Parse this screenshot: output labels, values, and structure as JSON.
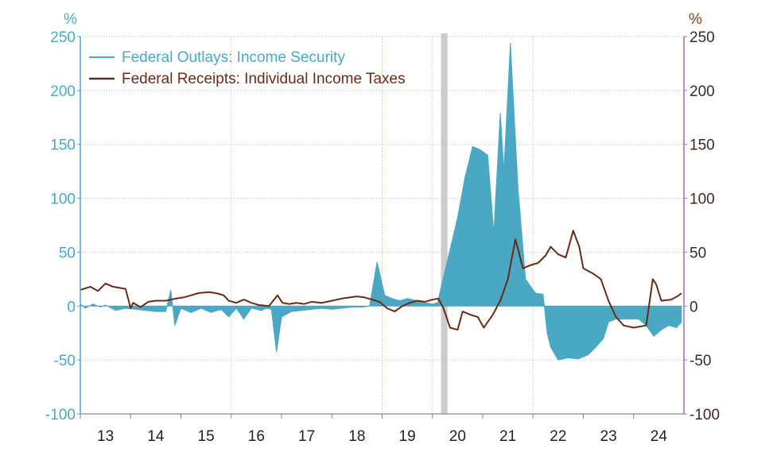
{
  "chart_data": {
    "type": "area",
    "title": "",
    "xlabel": "",
    "ylabel_left": "%",
    "ylabel_right": "%",
    "ylim": [
      -100,
      250
    ],
    "yticks": [
      250,
      200,
      150,
      100,
      50,
      0,
      -50,
      -100
    ],
    "ytick_labels": [
      "250",
      "200",
      "150",
      "100",
      "50",
      "0",
      "-50",
      "-100"
    ],
    "xlim": [
      2012.5,
      2024.5
    ],
    "x_tick_labels": [
      {
        "label": "13",
        "x": 2013.0
      },
      {
        "label": "14",
        "x": 2014.0
      },
      {
        "label": "15",
        "x": 2015.0
      },
      {
        "label": "16",
        "x": 2016.0
      },
      {
        "label": "17",
        "x": 2017.0
      },
      {
        "label": "18",
        "x": 2018.0
      },
      {
        "label": "19",
        "x": 2019.0
      },
      {
        "label": "20",
        "x": 2020.0
      },
      {
        "label": "21",
        "x": 2021.0
      },
      {
        "label": "22",
        "x": 2022.0
      },
      {
        "label": "23",
        "x": 2023.0
      },
      {
        "label": "24",
        "x": 2024.0
      }
    ],
    "vertical_gridlines_x": [
      2015.5,
      2018.5,
      2019.5,
      2021.5
    ],
    "shaded_period": {
      "start": 2019.67,
      "end": 2019.8
    },
    "legend_position": "top-left",
    "colors": {
      "series0": "#4aa8c4",
      "series1": "#6b2a12",
      "left_axis": "#4aa8c4",
      "right_axis": "#9b6db5",
      "grid_h": "#bfbfbf",
      "grid_v": "#e3b27a",
      "shade": "#cccccc"
    },
    "series": [
      {
        "name": "Federal Outlays: Income Security",
        "style": "area",
        "axis": "left",
        "points": [
          [
            2012.5,
            2
          ],
          [
            2012.6,
            -2
          ],
          [
            2012.75,
            2
          ],
          [
            2012.9,
            -1
          ],
          [
            2013.0,
            1
          ],
          [
            2013.2,
            -4
          ],
          [
            2013.4,
            -2
          ],
          [
            2013.6,
            -3
          ],
          [
            2013.8,
            -4
          ],
          [
            2014.0,
            -5
          ],
          [
            2014.2,
            -5
          ],
          [
            2014.3,
            15
          ],
          [
            2014.38,
            -18
          ],
          [
            2014.5,
            -2
          ],
          [
            2014.7,
            -6
          ],
          [
            2014.9,
            -2
          ],
          [
            2015.1,
            -6
          ],
          [
            2015.3,
            -3
          ],
          [
            2015.45,
            -10
          ],
          [
            2015.6,
            -2
          ],
          [
            2015.75,
            -12
          ],
          [
            2015.9,
            -2
          ],
          [
            2016.1,
            -4
          ],
          [
            2016.2,
            -2
          ],
          [
            2016.3,
            -3
          ],
          [
            2016.4,
            -43
          ],
          [
            2016.5,
            -10
          ],
          [
            2016.7,
            -5
          ],
          [
            2016.9,
            -4
          ],
          [
            2017.1,
            -3
          ],
          [
            2017.3,
            -2
          ],
          [
            2017.5,
            -3
          ],
          [
            2017.7,
            -2
          ],
          [
            2017.9,
            -1
          ],
          [
            2018.1,
            -1
          ],
          [
            2018.25,
            0
          ],
          [
            2018.4,
            41
          ],
          [
            2018.55,
            10
          ],
          [
            2018.7,
            7
          ],
          [
            2018.85,
            5
          ],
          [
            2019.0,
            7
          ],
          [
            2019.2,
            5
          ],
          [
            2019.35,
            3
          ],
          [
            2019.5,
            2
          ],
          [
            2019.6,
            3
          ],
          [
            2020.0,
            82
          ],
          [
            2020.15,
            120
          ],
          [
            2020.3,
            148
          ],
          [
            2020.45,
            145
          ],
          [
            2020.6,
            140
          ],
          [
            2020.72,
            68
          ],
          [
            2020.85,
            179
          ],
          [
            2020.92,
            125
          ],
          [
            2021.05,
            244
          ],
          [
            2021.2,
            110
          ],
          [
            2021.35,
            25
          ],
          [
            2021.55,
            12
          ],
          [
            2021.7,
            11
          ],
          [
            2021.78,
            -25
          ],
          [
            2021.85,
            -38
          ],
          [
            2022.0,
            -50
          ],
          [
            2022.2,
            -48
          ],
          [
            2022.4,
            -49
          ],
          [
            2022.6,
            -45
          ],
          [
            2022.75,
            -38
          ],
          [
            2022.9,
            -30
          ],
          [
            2023.0,
            -15
          ],
          [
            2023.15,
            -12
          ],
          [
            2023.4,
            -12
          ],
          [
            2023.6,
            -12
          ],
          [
            2023.75,
            -18
          ],
          [
            2023.9,
            -28
          ],
          [
            2024.05,
            -22
          ],
          [
            2024.2,
            -18
          ],
          [
            2024.35,
            -20
          ],
          [
            2024.45,
            -15
          ]
        ]
      },
      {
        "name": "Federal Receipts: Individual Income Taxes",
        "style": "line",
        "axis": "left",
        "points": [
          [
            2012.5,
            15
          ],
          [
            2012.7,
            18
          ],
          [
            2012.85,
            14
          ],
          [
            2013.0,
            21
          ],
          [
            2013.15,
            18
          ],
          [
            2013.4,
            16
          ],
          [
            2013.5,
            -2
          ],
          [
            2013.55,
            3
          ],
          [
            2013.7,
            -1
          ],
          [
            2013.85,
            4
          ],
          [
            2014.0,
            5
          ],
          [
            2014.2,
            5
          ],
          [
            2014.4,
            7
          ],
          [
            2014.55,
            8
          ],
          [
            2014.7,
            10
          ],
          [
            2014.85,
            12
          ],
          [
            2015.05,
            13
          ],
          [
            2015.2,
            12
          ],
          [
            2015.35,
            10
          ],
          [
            2015.45,
            5
          ],
          [
            2015.6,
            3
          ],
          [
            2015.75,
            6
          ],
          [
            2015.9,
            3
          ],
          [
            2016.05,
            1
          ],
          [
            2016.25,
            0
          ],
          [
            2016.42,
            10
          ],
          [
            2016.52,
            3
          ],
          [
            2016.65,
            2
          ],
          [
            2016.8,
            3
          ],
          [
            2016.95,
            2
          ],
          [
            2017.1,
            4
          ],
          [
            2017.3,
            3
          ],
          [
            2017.5,
            5
          ],
          [
            2017.7,
            7
          ],
          [
            2017.85,
            8
          ],
          [
            2018.0,
            9
          ],
          [
            2018.15,
            8
          ],
          [
            2018.3,
            6
          ],
          [
            2018.45,
            4
          ],
          [
            2018.6,
            -2
          ],
          [
            2018.75,
            -5
          ],
          [
            2018.9,
            0
          ],
          [
            2019.05,
            3
          ],
          [
            2019.2,
            5
          ],
          [
            2019.35,
            4
          ],
          [
            2019.5,
            6
          ],
          [
            2019.62,
            7
          ],
          [
            2019.72,
            -2
          ],
          [
            2019.85,
            -20
          ],
          [
            2020.0,
            -22
          ],
          [
            2020.1,
            -5
          ],
          [
            2020.25,
            -8
          ],
          [
            2020.4,
            -10
          ],
          [
            2020.52,
            -20
          ],
          [
            2020.7,
            -8
          ],
          [
            2020.85,
            5
          ],
          [
            2021.0,
            25
          ],
          [
            2021.15,
            62
          ],
          [
            2021.3,
            35
          ],
          [
            2021.45,
            38
          ],
          [
            2021.6,
            40
          ],
          [
            2021.75,
            47
          ],
          [
            2021.85,
            55
          ],
          [
            2022.0,
            48
          ],
          [
            2022.15,
            45
          ],
          [
            2022.3,
            70
          ],
          [
            2022.42,
            55
          ],
          [
            2022.5,
            35
          ],
          [
            2022.7,
            30
          ],
          [
            2022.85,
            25
          ],
          [
            2023.0,
            5
          ],
          [
            2023.15,
            -10
          ],
          [
            2023.3,
            -18
          ],
          [
            2023.5,
            -20
          ],
          [
            2023.75,
            -18
          ],
          [
            2023.88,
            25
          ],
          [
            2023.95,
            20
          ],
          [
            2024.05,
            5
          ],
          [
            2024.25,
            6
          ],
          [
            2024.4,
            10
          ],
          [
            2024.45,
            12
          ]
        ]
      }
    ]
  }
}
